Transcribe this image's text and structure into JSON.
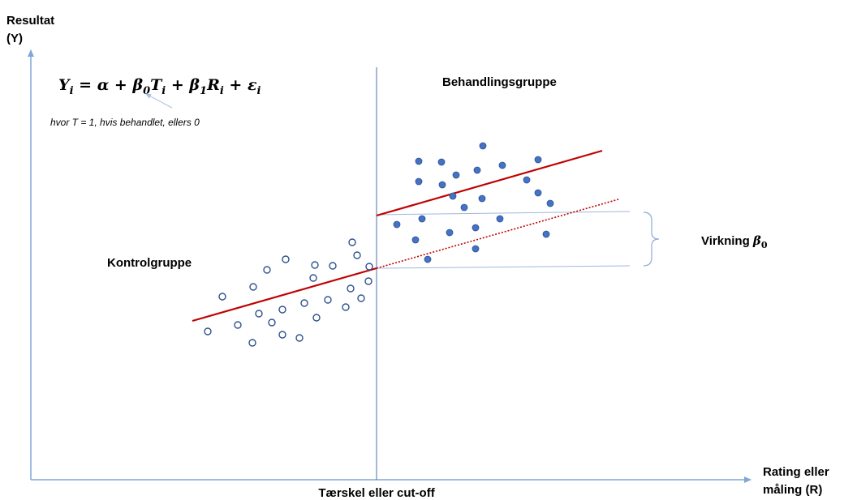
{
  "labels": {
    "y_axis_line1": "Resultat",
    "y_axis_line2": "(Y)",
    "x_axis_line1": "Rating eller",
    "x_axis_line2": "måling (R)",
    "threshold": "Tærskel eller cut-off",
    "treatment_group": "Behandlingsgruppe",
    "control_group": "Kontrolgruppe",
    "effect_prefix": "Virkning",
    "effect_symbol": "β",
    "effect_subscript": "0",
    "note": "hvor T = 1, hvis behandlet, ellers 0"
  },
  "equation": {
    "lhs": "Y",
    "lhs_sub": "i",
    "eq": " = ",
    "alpha": "α",
    "plus1": " + ",
    "beta0": "β",
    "beta0_sub": "0",
    "t": "T",
    "t_sub": "i",
    "plus2": " + ",
    "beta1": "β",
    "beta1_sub": "1",
    "r": "R",
    "r_sub": "i",
    "plus3": " + ",
    "eps": "ε",
    "eps_sub": "i"
  },
  "colors": {
    "axis": "#7fa7d6",
    "cutoff_line": "#4a72b0",
    "regression": "#c00000",
    "treatment_points": "#4472c4",
    "treatment_stroke": "#2f528f",
    "control_points_stroke": "#2f528f",
    "bracket": "#8eaadb"
  },
  "chart_data": {
    "type": "scatter",
    "cutoff": 464,
    "control_points": [
      [
        256,
        409
      ],
      [
        274,
        366
      ],
      [
        293,
        401
      ],
      [
        311,
        423
      ],
      [
        312,
        354
      ],
      [
        319,
        387
      ],
      [
        329,
        333
      ],
      [
        335,
        398
      ],
      [
        348,
        413
      ],
      [
        348,
        382
      ],
      [
        352,
        320
      ],
      [
        369,
        417
      ],
      [
        375,
        374
      ],
      [
        386,
        343
      ],
      [
        388,
        327
      ],
      [
        390,
        392
      ],
      [
        404,
        370
      ],
      [
        410,
        328
      ],
      [
        426,
        379
      ],
      [
        432,
        356
      ],
      [
        434,
        299
      ],
      [
        440,
        315
      ],
      [
        445,
        368
      ],
      [
        454,
        347
      ],
      [
        455,
        329
      ]
    ],
    "treatment_points": [
      [
        489,
        277
      ],
      [
        512,
        296
      ],
      [
        516,
        199
      ],
      [
        516,
        224
      ],
      [
        520,
        270
      ],
      [
        527,
        320
      ],
      [
        544,
        200
      ],
      [
        545,
        228
      ],
      [
        554,
        287
      ],
      [
        558,
        242
      ],
      [
        562,
        216
      ],
      [
        572,
        256
      ],
      [
        586,
        281
      ],
      [
        586,
        307
      ],
      [
        588,
        210
      ],
      [
        594,
        245
      ],
      [
        595,
        180
      ],
      [
        616,
        270
      ],
      [
        619,
        204
      ],
      [
        649,
        222
      ],
      [
        663,
        197
      ],
      [
        663,
        238
      ],
      [
        673,
        289
      ],
      [
        678,
        251
      ]
    ],
    "control_regression": [
      [
        237,
        396
      ],
      [
        464,
        331
      ]
    ],
    "treatment_regression": [
      [
        464,
        266
      ],
      [
        742,
        186
      ]
    ],
    "extrapolation": [
      [
        464,
        331
      ],
      [
        762,
        246
      ]
    ]
  }
}
